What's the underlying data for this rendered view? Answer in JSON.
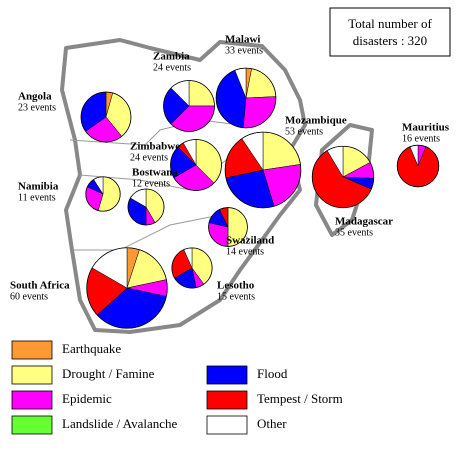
{
  "title": [
    "Total number of",
    "disasters : 320"
  ],
  "legend": [
    {
      "label": "Earthquake",
      "color": "#ff9933"
    },
    {
      "label": "Drought / Famine",
      "color": "#ffff80"
    },
    {
      "label": "Epidemic",
      "color": "#ff00ff"
    },
    {
      "label": "Landslide / Avalanche",
      "color": "#66ff33"
    },
    {
      "label": "Flood",
      "color": "#0000ff"
    },
    {
      "label": "Tempest / Storm",
      "color": "#ff0000"
    },
    {
      "label": "Other",
      "color": "#ffffff"
    }
  ],
  "countries": [
    {
      "name": "Angola",
      "events": "23 events",
      "values": [
        1,
        8,
        6,
        0,
        8,
        0,
        0
      ]
    },
    {
      "name": "Zambia",
      "events": "24 events",
      "values": [
        0,
        6,
        9,
        0,
        6,
        0,
        3
      ]
    },
    {
      "name": "Malawi",
      "events": "33 events",
      "values": [
        1,
        7,
        9,
        0,
        14,
        0,
        2
      ]
    },
    {
      "name": "Mozambique",
      "events": "53 events",
      "values": [
        0,
        12,
        12,
        0,
        14,
        10,
        5
      ]
    },
    {
      "name": "Mauritius",
      "events": "16 events",
      "values": [
        0,
        0,
        1,
        0,
        0,
        14,
        1
      ]
    },
    {
      "name": "Madagascar",
      "events": "35 events",
      "values": [
        0,
        6,
        3,
        0,
        2,
        21,
        3
      ]
    },
    {
      "name": "Zimbabwe",
      "events": "24 events",
      "values": [
        0,
        9,
        7,
        0,
        5,
        1,
        2
      ]
    },
    {
      "name": "Namibia",
      "events": "11 events",
      "values": [
        0,
        6,
        3,
        0,
        1,
        0,
        1
      ]
    },
    {
      "name": "Bostwana",
      "events": "12 events",
      "values": [
        0,
        5,
        1,
        0,
        4,
        0,
        2
      ]
    },
    {
      "name": "Swaziland",
      "events": "14 events",
      "values": [
        0,
        7,
        4,
        0,
        2,
        1,
        0
      ]
    },
    {
      "name": "Lesotho",
      "events": "15 events",
      "values": [
        0,
        6,
        1,
        0,
        3,
        4,
        1
      ]
    },
    {
      "name": "South Africa",
      "events": "60 events",
      "values": [
        3,
        10,
        4,
        0,
        21,
        12,
        10
      ]
    }
  ]
}
